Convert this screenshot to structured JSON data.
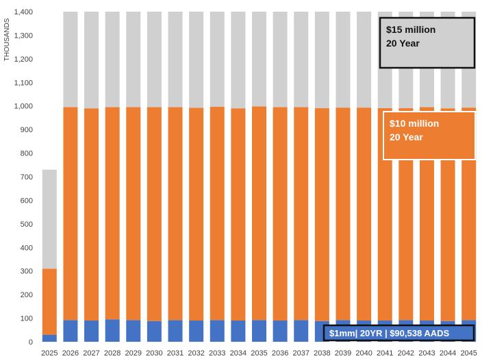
{
  "chart_data": {
    "type": "bar",
    "stacked": true,
    "ylabel": "THOUSANDS",
    "ylim": [
      0,
      1400
    ],
    "yticks": [
      0,
      100,
      200,
      300,
      400,
      500,
      600,
      700,
      800,
      900,
      1000,
      1100,
      1200,
      1300,
      1400
    ],
    "ytick_labels": [
      "0",
      "100",
      "200",
      "300",
      "400",
      "500",
      "600",
      "700",
      "800",
      "900",
      "1,000",
      "1,100",
      "1,200",
      "1,300",
      "1,400"
    ],
    "grid": false,
    "categories": [
      "2025",
      "2026",
      "2027",
      "2028",
      "2029",
      "2030",
      "2031",
      "2032",
      "2033",
      "2034",
      "2035",
      "2036",
      "2037",
      "2038",
      "2039",
      "2040",
      "2041",
      "2042",
      "2043",
      "2044",
      "2045"
    ],
    "series": [
      {
        "color": "#4472C4",
        "values": [
          30,
          92,
          90,
          95,
          92,
          88,
          92,
          90,
          92,
          90,
          92,
          90,
          92,
          88,
          92,
          90,
          90,
          92,
          90,
          88,
          92
        ]
      },
      {
        "color": "#ED7D31",
        "values": [
          280,
          903,
          900,
          900,
          903,
          907,
          903,
          902,
          905,
          900,
          906,
          905,
          903,
          903,
          901,
          903,
          901,
          899,
          905,
          902,
          901
        ]
      },
      {
        "color": "#D0D0D0",
        "values": [
          420,
          405,
          410,
          405,
          405,
          405,
          405,
          408,
          403,
          410,
          402,
          405,
          405,
          409,
          407,
          407,
          409,
          409,
          405,
          410,
          407
        ]
      }
    ],
    "annotations": [
      {
        "lines": [
          "$15 million",
          "20 Year"
        ],
        "fill": "#D0D0D0",
        "border": "#111111",
        "text_color": "#111111"
      },
      {
        "lines": [
          "$10 million",
          "20 Year"
        ],
        "fill": "#ED7D31",
        "border": "#FFFFFF",
        "text_color": "#FFFFFF"
      },
      {
        "lines": [
          "$1mm| 20YR | $90,538 AADS"
        ],
        "fill": "#4472C4",
        "border": "#111111",
        "text_color": "#FFFFFF"
      }
    ]
  }
}
